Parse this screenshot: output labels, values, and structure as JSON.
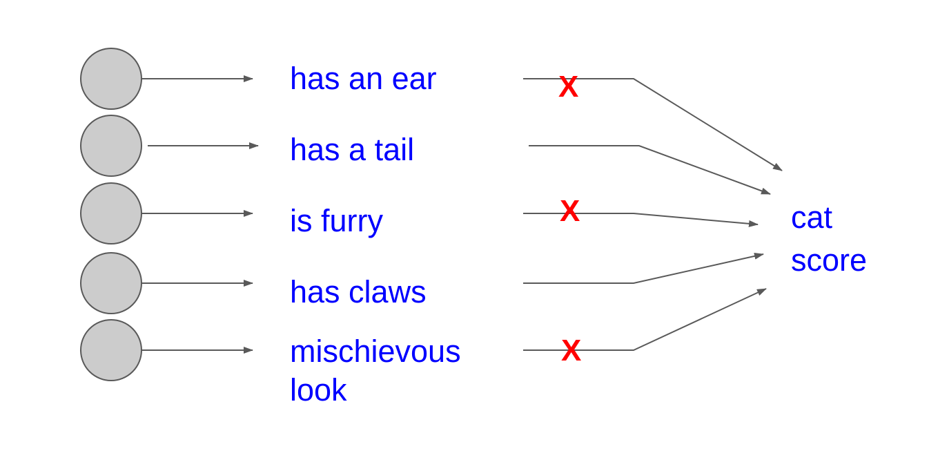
{
  "features": [
    {
      "label": "has an ear",
      "dropped": true
    },
    {
      "label": "has a tail",
      "dropped": false
    },
    {
      "label": "is furry",
      "dropped": true
    },
    {
      "label": "has claws",
      "dropped": false
    },
    {
      "label": "mischievous",
      "label_line2": "look",
      "dropped": true
    }
  ],
  "drop_mark": "X",
  "output": {
    "line1": "cat",
    "line2": "score"
  },
  "colors": {
    "node_fill": "#cccccc",
    "node_stroke": "#595959",
    "arrow": "#595959",
    "text": "#0000ff",
    "drop_mark": "#ff0000"
  }
}
